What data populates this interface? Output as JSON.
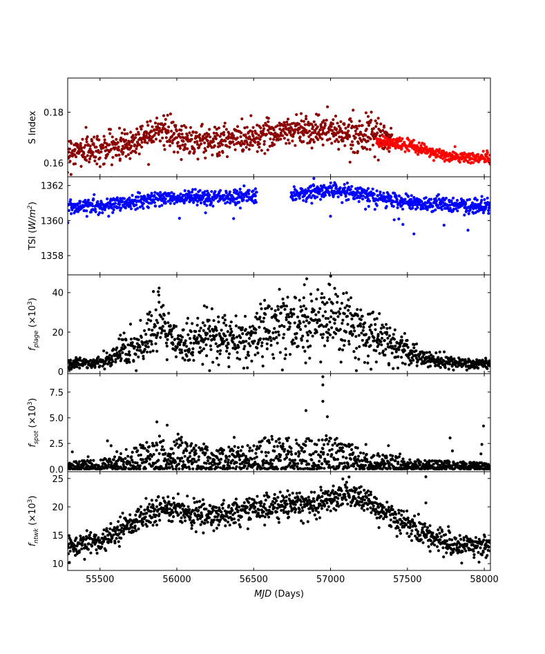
{
  "chart_data": {
    "type": "scatter",
    "shared_x": {
      "label_prefix": "MJD",
      "label_suffix": " (Days)",
      "xlim": [
        55290,
        58040
      ],
      "ticks": [
        55500,
        56000,
        56500,
        57000,
        57500,
        58000
      ],
      "tick_labels": [
        "55500",
        "56000",
        "56500",
        "57000",
        "57500",
        "58000"
      ]
    },
    "panels": [
      {
        "id": "s-index",
        "ylabel": "S Index",
        "ylim": [
          0.1545,
          0.1935
        ],
        "yticks": [
          0.16,
          0.18
        ],
        "ytick_labels": [
          "0.16",
          "0.18"
        ],
        "series": [
          {
            "name": "S index (early)",
            "color": "#8b0000",
            "x_range": [
              55290,
              57400
            ],
            "trend": [
              [
                55290,
                0.1645
              ],
              [
                55500,
                0.1655
              ],
              [
                55700,
                0.1675
              ],
              [
                55870,
                0.174
              ],
              [
                56000,
                0.1695
              ],
              [
                56300,
                0.1685
              ],
              [
                56600,
                0.1715
              ],
              [
                56800,
                0.1735
              ],
              [
                57000,
                0.1725
              ],
              [
                57200,
                0.1715
              ],
              [
                57400,
                0.169
              ]
            ],
            "scatter": 0.003
          },
          {
            "name": "S index (late)",
            "color": "#ff0000",
            "x_range": [
              57300,
              58040
            ],
            "trend": [
              [
                57300,
                0.1685
              ],
              [
                57450,
                0.1675
              ],
              [
                57600,
                0.1655
              ],
              [
                57750,
                0.1625
              ],
              [
                57900,
                0.162
              ],
              [
                58040,
                0.162
              ]
            ],
            "scatter": 0.0012
          }
        ]
      },
      {
        "id": "tsi",
        "ylabel": "TSI",
        "ylabel_unit": "W/m",
        "ylabel_sup": "2",
        "ylim": [
          1356.9,
          1362.5
        ],
        "yticks": [
          1358,
          1360,
          1362
        ],
        "ytick_labels": [
          "1358",
          "1360",
          "1362"
        ],
        "series": [
          {
            "name": "TSI",
            "color": "#0000ff",
            "gap": [
              56520,
              56740
            ],
            "trend": [
              [
                55290,
                1360.8
              ],
              [
                55550,
                1360.85
              ],
              [
                55700,
                1361.1
              ],
              [
                55900,
                1361.3
              ],
              [
                56200,
                1361.3
              ],
              [
                56500,
                1361.45
              ],
              [
                56800,
                1361.5
              ],
              [
                57000,
                1361.75
              ],
              [
                57200,
                1361.5
              ],
              [
                57400,
                1361.2
              ],
              [
                57600,
                1361.0
              ],
              [
                57800,
                1360.9
              ],
              [
                58040,
                1360.8
              ]
            ],
            "scatter": 0.35
          }
        ]
      },
      {
        "id": "f-plage",
        "ylabel": "f",
        "ylabel_sub": "plage",
        "ylabel_scale": "(×10",
        "ylabel_sup": "3",
        "ylim": [
          -1,
          49
        ],
        "yticks": [
          0,
          20,
          40
        ],
        "ytick_labels": [
          "0",
          "20",
          "40"
        ],
        "series": [
          {
            "name": "plage",
            "color": "#000000",
            "trend": [
              [
                55290,
                4
              ],
              [
                55550,
                5
              ],
              [
                55650,
                13
              ],
              [
                55750,
                10
              ],
              [
                55880,
                24
              ],
              [
                56000,
                13
              ],
              [
                56200,
                18
              ],
              [
                56400,
                16
              ],
              [
                56500,
                17
              ],
              [
                56650,
                25
              ],
              [
                56850,
                23
              ],
              [
                57000,
                28
              ],
              [
                57200,
                20
              ],
              [
                57400,
                13
              ],
              [
                57600,
                7
              ],
              [
                57800,
                4
              ],
              [
                58040,
                4
              ]
            ],
            "scatter": 0.35,
            "outliers": [
              [
                56845,
                47
              ],
              [
                56995,
                44
              ],
              [
                56830,
                44
              ]
            ]
          }
        ]
      },
      {
        "id": "f-spot",
        "ylabel": "f",
        "ylabel_sub": "spot",
        "ylabel_scale": "(×10",
        "ylabel_sup": "3",
        "ylim": [
          -0.25,
          9.3
        ],
        "yticks": [
          0,
          2.5,
          5,
          7.5
        ],
        "ytick_labels": [
          "0.0",
          "2.5",
          "5.0",
          "7.5"
        ],
        "series": [
          {
            "name": "spot",
            "color": "#000000",
            "trend": [
              [
                55290,
                0.3
              ],
              [
                55550,
                0.5
              ],
              [
                55700,
                0.9
              ],
              [
                55900,
                1.5
              ],
              [
                56100,
                1.2
              ],
              [
                56300,
                0.9
              ],
              [
                56600,
                1.5
              ],
              [
                56900,
                1.4
              ],
              [
                57000,
                1.6
              ],
              [
                57200,
                0.9
              ],
              [
                57400,
                0.6
              ],
              [
                57600,
                0.4
              ],
              [
                58040,
                0.3
              ]
            ],
            "scatter": 0.9,
            "outliers": [
              [
                56950,
                9.0
              ],
              [
                56950,
                8.2
              ],
              [
                56950,
                6.6
              ],
              [
                57995,
                4.2
              ],
              [
                55870,
                4.6
              ],
              [
                56840,
                5.7
              ]
            ]
          }
        ]
      },
      {
        "id": "f-ntwk",
        "ylabel": "f",
        "ylabel_sub": "ntwk",
        "ylabel_scale": "(×10",
        "ylabel_sup": "3",
        "ylim": [
          8.8,
          26.2
        ],
        "yticks": [
          10,
          15,
          20,
          25
        ],
        "ytick_labels": [
          "10",
          "15",
          "20",
          "25"
        ],
        "series": [
          {
            "name": "network",
            "color": "#000000",
            "trend": [
              [
                55290,
                13
              ],
              [
                55500,
                14
              ],
              [
                55700,
                17
              ],
              [
                55900,
                20
              ],
              [
                56200,
                18.5
              ],
              [
                56500,
                19.5
              ],
              [
                56750,
                20.5
              ],
              [
                56900,
                20.5
              ],
              [
                57100,
                22.5
              ],
              [
                57300,
                20
              ],
              [
                57500,
                17
              ],
              [
                57650,
                15
              ],
              [
                57800,
                13
              ],
              [
                58040,
                13.5
              ]
            ],
            "scatter": 1.1,
            "outliers": [
              [
                57620,
                25.3
              ],
              [
                57620,
                20.7
              ]
            ]
          }
        ]
      }
    ]
  }
}
